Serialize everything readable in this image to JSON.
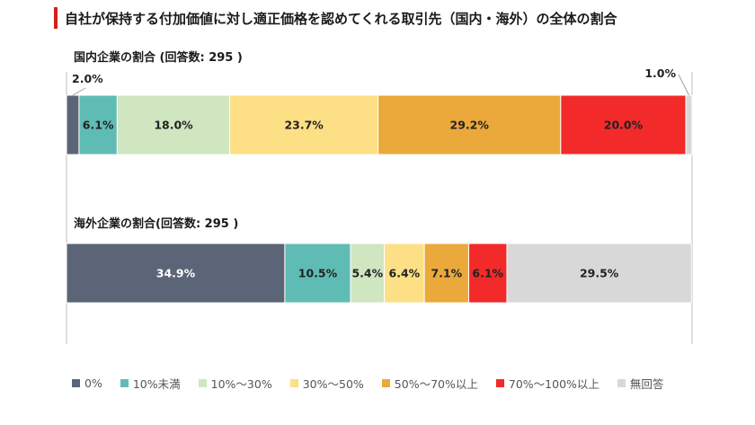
{
  "title": "自社が保持する付加価値に対し適正価格を認めてくれる取引先（国内・海外）の全体の割合",
  "colors": {
    "title_accent": "#d61e1e",
    "category_colors": [
      "#5b6577",
      "#5fbcb4",
      "#cfe6c1",
      "#fddf85",
      "#eaa93a",
      "#f22a2a",
      "#d9d8d8"
    ]
  },
  "chart_data": {
    "type": "stacked-bar-100",
    "categories_legend": [
      "0%",
      "10%未満",
      "10%～30%",
      "30%～50%",
      "50%～70%以上",
      "70%～100%以上",
      "無回答"
    ],
    "series": [
      {
        "name": "国内企業の割合 (回答数: 295 )",
        "values": [
          2.0,
          6.1,
          18.0,
          23.7,
          29.2,
          20.0,
          1.0
        ],
        "labels": [
          "2.0%",
          "6.1%",
          "18.0%",
          "23.7%",
          "29.2%",
          "20.0%",
          "1.0%"
        ]
      },
      {
        "name": "海外企業の割合(回答数: 295 )",
        "values": [
          34.9,
          10.5,
          5.4,
          6.4,
          7.1,
          6.1,
          29.5
        ],
        "labels": [
          "34.9%",
          "10.5%",
          "5.4%",
          "6.4%",
          "7.1%",
          "6.1%",
          "29.5%"
        ]
      }
    ],
    "xlim": [
      0,
      100
    ],
    "legend_position": "bottom",
    "grid": false
  }
}
